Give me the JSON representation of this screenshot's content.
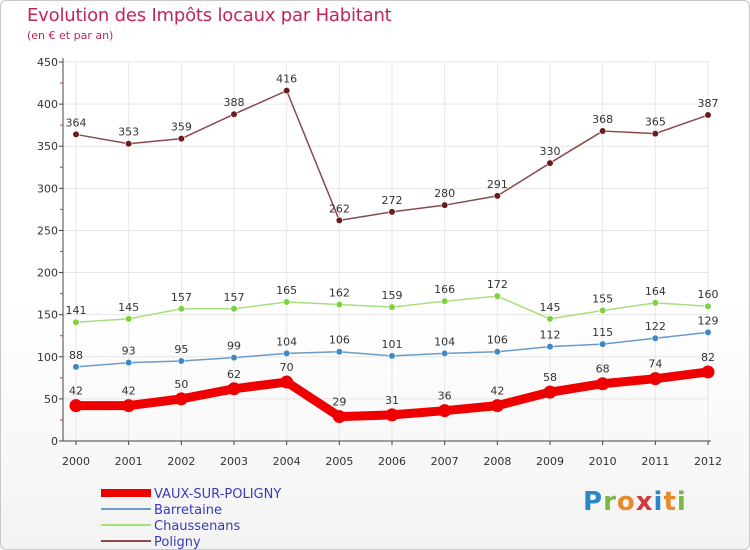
{
  "header": {
    "title": "Evolution des Impôts locaux par Habitant",
    "subtitle": "(en € et par an)"
  },
  "logo": {
    "text": "Proxiti",
    "letter_colors": [
      "#2b86c5",
      "#7ab648",
      "#e8892a",
      "#d23b3b",
      "#2b86c5",
      "#e8892a",
      "#7ab648"
    ]
  },
  "colors": {
    "title": "#c4245a",
    "axis": "#444444",
    "grid": "#e6e6e6",
    "axis_red_ticks": "#d9325c"
  },
  "chart_data": {
    "type": "line",
    "title": "Evolution des Impôts locaux par Habitant",
    "subtitle": "(en € et par an)",
    "xlabel": "",
    "ylabel": "",
    "x": [
      "2000",
      "2001",
      "2002",
      "2003",
      "2004",
      "2005",
      "2006",
      "2007",
      "2008",
      "2009",
      "2010",
      "2011",
      "2012"
    ],
    "ylim": [
      0,
      450
    ],
    "yticks": [
      0,
      50,
      100,
      150,
      200,
      250,
      300,
      350,
      400,
      450
    ],
    "grid": true,
    "legend_position": "bottom-left",
    "series": [
      {
        "name": "VAUX-SUR-POLIGNY",
        "color": "#ee0000",
        "point_color": "#ee0000",
        "thick": true,
        "values": [
          42,
          42,
          50,
          62,
          70,
          29,
          31,
          36,
          42,
          58,
          68,
          74,
          82
        ]
      },
      {
        "name": "Barretaine",
        "color": "#6c9bc6",
        "point_color": "#3f88c8",
        "thick": false,
        "values": [
          88,
          93,
          95,
          99,
          104,
          106,
          101,
          104,
          106,
          112,
          115,
          122,
          129
        ]
      },
      {
        "name": "Chaussenans",
        "color": "#a6e07d",
        "point_color": "#7bd23e",
        "thick": false,
        "values": [
          141,
          145,
          157,
          157,
          165,
          162,
          159,
          166,
          172,
          145,
          155,
          164,
          160
        ]
      },
      {
        "name": "Poligny",
        "color": "#8a4a4a",
        "point_color": "#6b1c1c",
        "thick": false,
        "values": [
          364,
          353,
          359,
          388,
          416,
          262,
          272,
          280,
          291,
          330,
          368,
          365,
          387
        ]
      }
    ]
  }
}
